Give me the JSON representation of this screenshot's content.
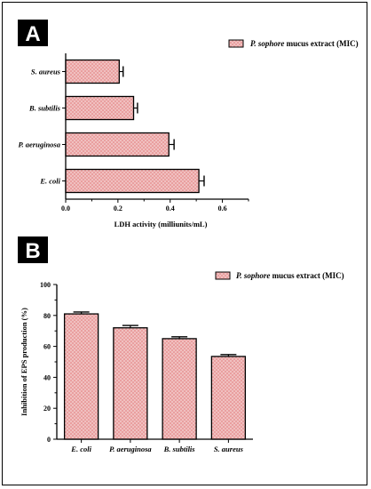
{
  "figure": {
    "panels": [
      {
        "letter": "A"
      },
      {
        "letter": "B"
      }
    ],
    "legend": {
      "italic_part": "P. sophore",
      "rest": " mucus extract (MIC)"
    }
  },
  "colors": {
    "bar_fill": "#f3caca",
    "bar_hatch": "#e89a9a",
    "bar_stroke": "#000000"
  },
  "chart_data": [
    {
      "type": "bar",
      "orientation": "horizontal",
      "panel": "A",
      "categories": [
        "S. aureus",
        "B. subtilis",
        "P. aeruginosa",
        "E. coli"
      ],
      "series": [
        {
          "name": "P. sophore mucus extract (MIC)",
          "values": [
            0.205,
            0.26,
            0.395,
            0.51
          ],
          "errors": [
            0.015,
            0.015,
            0.02,
            0.02
          ]
        }
      ],
      "xlabel": "LDH activity (milliunits/mL)",
      "ylabel": "",
      "xlim": [
        0,
        0.7
      ],
      "xticks": [
        "0.0",
        "0.2",
        "0.4",
        "0.6"
      ],
      "legend_position": "top-right"
    },
    {
      "type": "bar",
      "orientation": "vertical",
      "panel": "B",
      "categories": [
        "E. coli",
        "P. aeruginosa",
        "B. subtilis",
        "S. aureus"
      ],
      "series": [
        {
          "name": "P. sophore mucus extract (MIC)",
          "values": [
            81,
            72,
            65,
            53.5
          ],
          "errors": [
            1.2,
            1.5,
            1.2,
            1.2
          ]
        }
      ],
      "xlabel": "",
      "ylabel": "Inhibition of EPS production (%)",
      "ylim": [
        0,
        100
      ],
      "yticks": [
        "0",
        "20",
        "40",
        "60",
        "80",
        "100"
      ],
      "legend_position": "top-right"
    }
  ]
}
